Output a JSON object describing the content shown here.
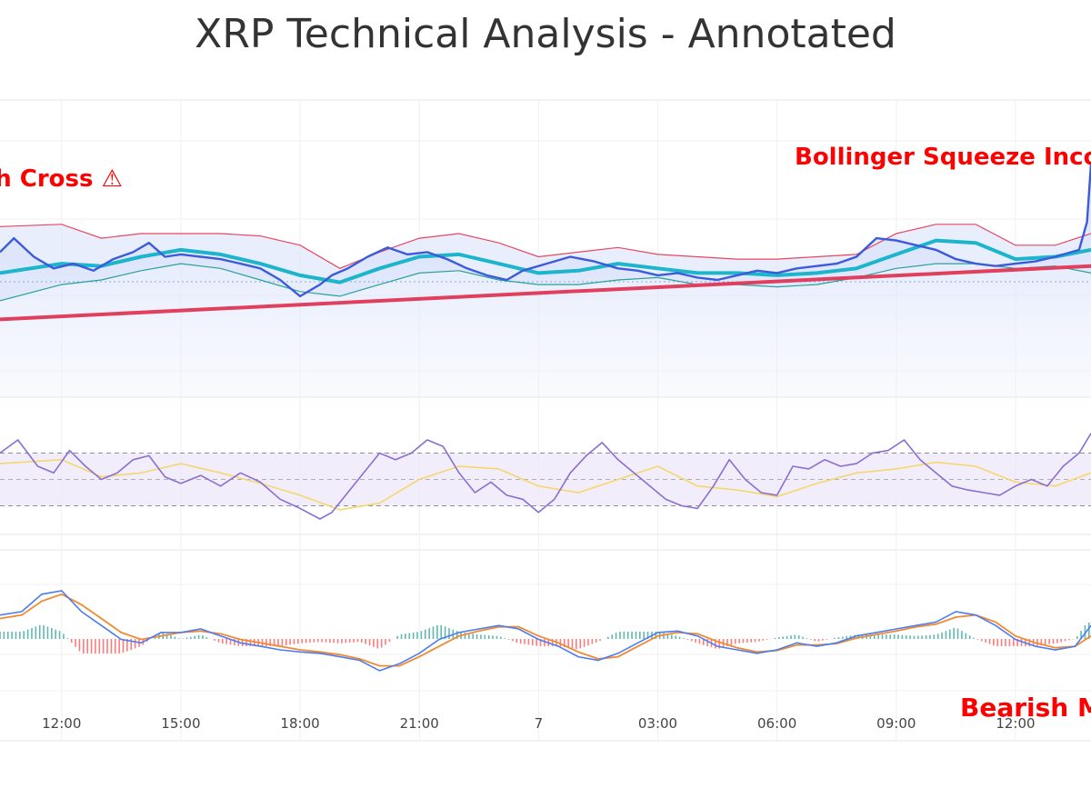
{
  "title": "XRP Technical Analysis - Annotated",
  "colors": {
    "price": "#3b5bdb",
    "sma20": "#1cb5cc",
    "sma200": "#e0405e",
    "bb_upper": "#e8475f",
    "bb_lower": "#2aa198",
    "rsi": "#8a6fd1",
    "rsi_signal": "#f5d76e",
    "macd": "#4c7cf3",
    "macd_signal": "#f08a30",
    "hist_pos": "#2aa198",
    "hist_neg": "#ff4d4d",
    "annotation": "#ff0000"
  },
  "annotations": [
    "Death Cross ⚠",
    "Bollinger Squeeze Incoming",
    "Bearish MACD"
  ],
  "chart_data": {
    "type": "line",
    "title": "XRP Technical Analysis - Annotated",
    "xlabel": "",
    "x_ticks": [
      "12:00",
      "15:00",
      "18:00",
      "21:00",
      "7",
      "03:00",
      "06:00",
      "09:00",
      "12:00"
    ],
    "x_tick_hours": [
      0,
      3,
      6,
      9,
      12,
      15,
      18,
      21,
      24
    ],
    "x_range_hours": [
      -1.55,
      25.9
    ],
    "grid": true,
    "panels": [
      {
        "name": "price",
        "ylim": [
          0,
          100
        ],
        "series": [
          {
            "name": "price",
            "x": [
              -1.55,
              -1.2,
              -0.7,
              -0.2,
              0.3,
              0.8,
              1.3,
              1.8,
              2.2,
              2.6,
              3.0,
              3.5,
              4.0,
              4.5,
              5.0,
              5.5,
              6.0,
              6.5,
              6.8,
              7.2,
              7.7,
              8.2,
              8.7,
              9.2,
              9.7,
              10.2,
              10.7,
              11.2,
              11.6,
              12.2,
              12.8,
              13.4,
              14.0,
              14.5,
              15.0,
              15.5,
              16.0,
              16.5,
              17.0,
              17.5,
              18.0,
              18.5,
              19.0,
              19.5,
              20.0,
              20.5,
              21.0,
              21.5,
              22.0,
              22.5,
              23.0,
              23.5,
              24.0,
              24.5,
              25.0,
              25.6,
              25.8,
              25.9
            ],
            "values": [
              52,
              58,
              50,
              45,
              47,
              44,
              49,
              52,
              56,
              50,
              51,
              50,
              49,
              47,
              45,
              40,
              33,
              38,
              42,
              45,
              50,
              54,
              51,
              52,
              49,
              45,
              42,
              40,
              44,
              47,
              50,
              48,
              45,
              44,
              42,
              43,
              41,
              40,
              42,
              44,
              43,
              45,
              46,
              47,
              50,
              58,
              57,
              55,
              53,
              49,
              47,
              46,
              47,
              48,
              50,
              53,
              65,
              90
            ]
          },
          {
            "name": "sma20",
            "x": [
              -1.55,
              0,
              1,
              2,
              3,
              4,
              5,
              6,
              7,
              8,
              9,
              10,
              11,
              12,
              13,
              14,
              15,
              16,
              17,
              18,
              19,
              20,
              21,
              22,
              23,
              24,
              25,
              25.9
            ],
            "values": [
              43,
              47,
              46,
              50,
              53,
              51,
              47,
              42,
              39,
              45,
              50,
              51,
              47,
              43,
              44,
              47,
              45,
              43,
              43,
              42,
              43,
              45,
              51,
              57,
              56,
              49,
              50,
              53
            ]
          },
          {
            "name": "bb_upper",
            "x": [
              -1.55,
              0,
              1,
              2,
              3,
              4,
              5,
              6,
              7,
              8,
              9,
              10,
              11,
              12,
              13,
              14,
              15,
              16,
              17,
              18,
              19,
              20,
              21,
              22,
              23,
              24,
              25,
              25.9
            ],
            "values": [
              63,
              64,
              58,
              60,
              60,
              60,
              59,
              55,
              45,
              52,
              58,
              60,
              56,
              50,
              52,
              54,
              51,
              50,
              49,
              49,
              50,
              51,
              60,
              64,
              64,
              55,
              55,
              60
            ]
          },
          {
            "name": "bb_lower",
            "x": [
              -1.55,
              0,
              1,
              2,
              3,
              4,
              5,
              6,
              7,
              8,
              9,
              10,
              11,
              12,
              13,
              14,
              15,
              16,
              17,
              18,
              19,
              20,
              21,
              22,
              23,
              24,
              25,
              25.9
            ],
            "values": [
              31,
              38,
              40,
              44,
              47,
              45,
              40,
              35,
              33,
              38,
              43,
              44,
              40,
              38,
              38,
              40,
              41,
              38,
              38,
              37,
              38,
              41,
              45,
              47,
              47,
              45,
              46,
              43
            ]
          },
          {
            "name": "sma200",
            "x": [
              -1.55,
              25.9
            ],
            "values": [
              23,
              46
            ]
          }
        ]
      },
      {
        "name": "rsi",
        "ylim": [
          0,
          100
        ],
        "levels": [
          70,
          50,
          30
        ],
        "series": [
          {
            "name": "rsi",
            "x": [
              -1.55,
              -1.1,
              -0.6,
              -0.2,
              0.2,
              0.6,
              1.0,
              1.4,
              1.8,
              2.2,
              2.6,
              3.0,
              3.5,
              4.0,
              4.5,
              5.0,
              5.5,
              6.0,
              6.5,
              6.8,
              7.2,
              7.6,
              8.0,
              8.4,
              8.8,
              9.2,
              9.6,
              10.0,
              10.4,
              10.8,
              11.2,
              11.6,
              12.0,
              12.4,
              12.8,
              13.2,
              13.6,
              14.0,
              14.4,
              14.8,
              15.2,
              15.6,
              16.0,
              16.4,
              16.8,
              17.2,
              17.6,
              18.0,
              18.4,
              18.8,
              19.2,
              19.6,
              20.0,
              20.4,
              20.8,
              21.2,
              21.6,
              22.0,
              22.4,
              22.8,
              23.2,
              23.6,
              24.0,
              24.4,
              24.8,
              25.2,
              25.6,
              25.9
            ],
            "values": [
              70,
              80,
              60,
              55,
              72,
              60,
              50,
              55,
              65,
              68,
              52,
              47,
              53,
              45,
              55,
              48,
              35,
              28,
              20,
              25,
              40,
              55,
              70,
              65,
              70,
              80,
              75,
              55,
              40,
              48,
              38,
              35,
              25,
              35,
              55,
              68,
              78,
              65,
              55,
              45,
              35,
              30,
              28,
              45,
              65,
              50,
              40,
              38,
              60,
              58,
              65,
              60,
              62,
              70,
              72,
              80,
              65,
              55,
              45,
              42,
              40,
              38,
              45,
              50,
              45,
              60,
              70,
              85
            ]
          },
          {
            "name": "rsi_signal",
            "x": [
              -1.55,
              0,
              1,
              2,
              3,
              4,
              5,
              6,
              7,
              8,
              9,
              10,
              11,
              12,
              13,
              14,
              15,
              16,
              17,
              18,
              19,
              20,
              21,
              22,
              23,
              24,
              25,
              25.9
            ],
            "values": [
              62,
              65,
              52,
              55,
              62,
              55,
              47,
              38,
              27,
              32,
              50,
              60,
              58,
              45,
              40,
              50,
              60,
              45,
              42,
              37,
              47,
              55,
              58,
              63,
              60,
              48,
              45,
              55
            ]
          }
        ]
      },
      {
        "name": "macd",
        "ylim": [
          -100,
          100
        ],
        "series": [
          {
            "name": "macd",
            "x": [
              -1.55,
              -1.0,
              -0.5,
              0,
              0.5,
              1.0,
              1.5,
              2.0,
              2.5,
              3.0,
              3.5,
              4.0,
              4.5,
              5.0,
              5.5,
              6.0,
              6.5,
              7.0,
              7.5,
              8.0,
              8.5,
              9.0,
              9.5,
              10.0,
              10.5,
              11.0,
              11.5,
              12.0,
              12.5,
              13.0,
              13.5,
              14.0,
              14.5,
              15.0,
              15.5,
              16.0,
              16.5,
              17.0,
              17.5,
              18.0,
              18.5,
              19.0,
              19.5,
              20.0,
              20.5,
              21.0,
              21.5,
              22.0,
              22.5,
              23.0,
              23.5,
              24.0,
              24.5,
              25.0,
              25.5,
              25.9
            ],
            "values": [
              35,
              40,
              65,
              70,
              40,
              20,
              0,
              -5,
              10,
              10,
              15,
              5,
              -5,
              -10,
              -15,
              -18,
              -20,
              -25,
              -30,
              -45,
              -35,
              -20,
              0,
              10,
              15,
              20,
              15,
              0,
              -10,
              -25,
              -30,
              -20,
              -5,
              10,
              12,
              5,
              -10,
              -15,
              -20,
              -15,
              -5,
              -10,
              -5,
              5,
              10,
              15,
              20,
              25,
              40,
              35,
              20,
              0,
              -10,
              -15,
              -10,
              20
            ]
          },
          {
            "name": "macd_signal",
            "x": [
              -1.55,
              -1.0,
              -0.5,
              0,
              0.5,
              1.0,
              1.5,
              2.0,
              2.5,
              3.0,
              3.5,
              4.0,
              4.5,
              5.0,
              5.5,
              6.0,
              6.5,
              7.0,
              7.5,
              8.0,
              8.5,
              9.0,
              9.5,
              10.0,
              10.5,
              11.0,
              11.5,
              12.0,
              12.5,
              13.0,
              13.5,
              14.0,
              14.5,
              15.0,
              15.5,
              16.0,
              16.5,
              17.0,
              17.5,
              18.0,
              18.5,
              19.0,
              19.5,
              20.0,
              20.5,
              21.0,
              21.5,
              22.0,
              22.5,
              23.0,
              23.5,
              24.0,
              24.5,
              25.0,
              25.5,
              25.9
            ],
            "values": [
              30,
              35,
              55,
              65,
              50,
              30,
              10,
              0,
              5,
              10,
              12,
              8,
              0,
              -5,
              -10,
              -15,
              -18,
              -22,
              -28,
              -38,
              -38,
              -25,
              -10,
              5,
              12,
              18,
              18,
              5,
              -5,
              -18,
              -28,
              -25,
              -10,
              5,
              10,
              8,
              -3,
              -12,
              -18,
              -16,
              -8,
              -8,
              -6,
              2,
              7,
              12,
              18,
              22,
              32,
              35,
              25,
              5,
              -5,
              -12,
              -10,
              5
            ]
          }
        ]
      }
    ]
  }
}
